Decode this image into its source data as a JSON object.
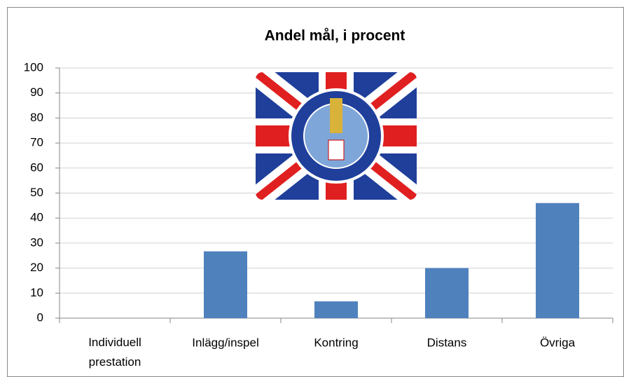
{
  "chart_data": {
    "type": "bar",
    "title": "Andel mål, i procent",
    "categories": [
      "Individuell prestation",
      "Inlägg/inspel",
      "Kontring",
      "Distans",
      "Övriga"
    ],
    "values": [
      0,
      26.7,
      6.7,
      20,
      46
    ],
    "color": "#4f81bd",
    "ylim": [
      0,
      100
    ],
    "yticks": [
      0,
      10,
      20,
      30,
      40,
      50,
      60,
      70,
      80,
      90,
      100
    ],
    "grid": true
  }
}
